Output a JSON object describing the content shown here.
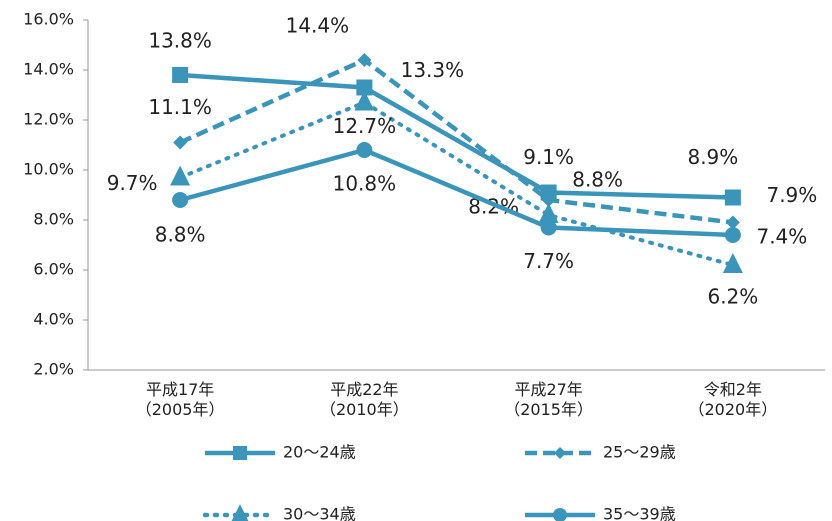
{
  "chart_data": {
    "type": "line",
    "categories": [
      "平成17年\n（2005年）",
      "平成22年\n（2010年）",
      "平成27年\n（2015年）",
      "令和2年\n（2020年）"
    ],
    "series": [
      {
        "name": "20～24歳",
        "color": "#3b95ba",
        "dash": "solid",
        "marker": "square",
        "values": [
          13.8,
          13.3,
          9.1,
          8.9
        ],
        "value_labels": [
          "13.8%",
          "13.3%",
          "9.1%",
          "8.9%"
        ]
      },
      {
        "name": "25～29歳",
        "color": "#3b95ba",
        "dash": "dashed",
        "marker": "diamond",
        "values": [
          11.1,
          14.4,
          8.8,
          7.9
        ],
        "value_labels": [
          "11.1%",
          "14.4%",
          "8.8%",
          "7.9%"
        ]
      },
      {
        "name": "30～34歳",
        "color": "#3b95ba",
        "dash": "dotted",
        "marker": "triangle",
        "values": [
          9.7,
          12.7,
          8.2,
          6.2
        ],
        "value_labels": [
          "9.7%",
          "12.7%",
          "8.2%",
          "6.2%"
        ]
      },
      {
        "name": "35～39歳",
        "color": "#3b95ba",
        "dash": "solid",
        "marker": "circle",
        "values": [
          8.8,
          10.8,
          7.7,
          7.4
        ],
        "value_labels": [
          "8.8%",
          "10.8%",
          "7.7%",
          "7.4%"
        ]
      }
    ],
    "ylim": [
      2,
      16
    ],
    "yticks": [
      {
        "value": 2,
        "label": "2.0%"
      },
      {
        "value": 4,
        "label": "4.0%"
      },
      {
        "value": 6,
        "label": "6.0%"
      },
      {
        "value": 8,
        "label": "8.0%"
      },
      {
        "value": 10,
        "label": "10.0%"
      },
      {
        "value": 12,
        "label": "12.0%"
      },
      {
        "value": 14,
        "label": "14.0%"
      },
      {
        "value": 16,
        "label": "16.0%"
      }
    ],
    "legend": "bottom"
  }
}
